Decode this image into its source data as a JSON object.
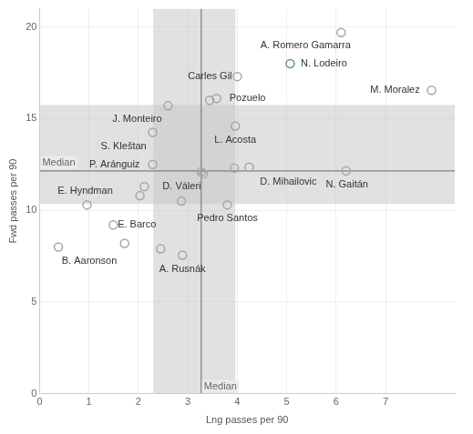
{
  "chart_data": {
    "type": "scatter",
    "x_label": "Lng passes per 90",
    "y_label": "Fwd passes per 90",
    "x": [
      6.1,
      5.07,
      4.0,
      7.93,
      2.6,
      3.44,
      3.58,
      3.96,
      2.29,
      2.29,
      3.27,
      3.31,
      3.94,
      4.24,
      6.2,
      2.12,
      2.03,
      2.87,
      3.8,
      0.96,
      1.49,
      1.72,
      0.38,
      2.45,
      2.89
    ],
    "values": [
      19.7,
      18.0,
      17.3,
      16.55,
      15.7,
      16.0,
      16.1,
      14.6,
      14.25,
      12.5,
      12.1,
      12.0,
      12.3,
      12.35,
      12.15,
      11.3,
      10.8,
      10.5,
      10.3,
      10.3,
      9.2,
      8.2,
      8.0,
      7.9,
      7.55
    ],
    "point_labels": [
      "A. Romero Gamarra",
      "N. Lodeiro",
      "Carles Gil",
      "M. Moralez",
      "J. Monteiro",
      null,
      "Pozuelo",
      "L. Acosta",
      "S. Kleštan",
      "P. Aránguiz",
      null,
      null,
      null,
      "D. Mihailovic",
      "N. Gaitán",
      "D. Váleri",
      null,
      null,
      "Pedro Santos",
      "E. Hyndman",
      "E. Barco",
      null,
      "B. Aaronson",
      null,
      "A. Rusnák"
    ],
    "colors": [
      "#a6a6a6",
      "#5e9e68",
      "#a6a6a6",
      "#a6a6a6",
      "#a6a6a6",
      "#a6a6a6",
      "#a6a6a6",
      "#a6a6a6",
      "#a6a6a6",
      "#a6a6a6",
      "#a6a6a6",
      "#a6a6a6",
      "#a6a6a6",
      "#a6a6a6",
      "#a6a6a6",
      "#a6a6a6",
      "#a6a6a6",
      "#a6a6a6",
      "#a6a6a6",
      "#a6a6a6",
      "#a6a6a6",
      "#a6a6a6",
      "#a6a6a6",
      "#a6a6a6",
      "#a6a6a6"
    ],
    "marker": "circle",
    "xlim": [
      0,
      8.4
    ],
    "xticks": [
      0,
      1,
      2,
      3,
      4,
      5,
      6,
      7
    ],
    "ylim": [
      0,
      21
    ],
    "yticks": [
      0,
      5,
      10,
      15,
      20
    ],
    "grid": true,
    "reference_lines": [
      {
        "axis": "x",
        "value": 3.27,
        "label": "Median",
        "band": [
          2.3,
          3.96
        ]
      },
      {
        "axis": "y",
        "value": 12.15,
        "label": "Median",
        "band": [
          10.35,
          15.75
        ]
      }
    ]
  }
}
